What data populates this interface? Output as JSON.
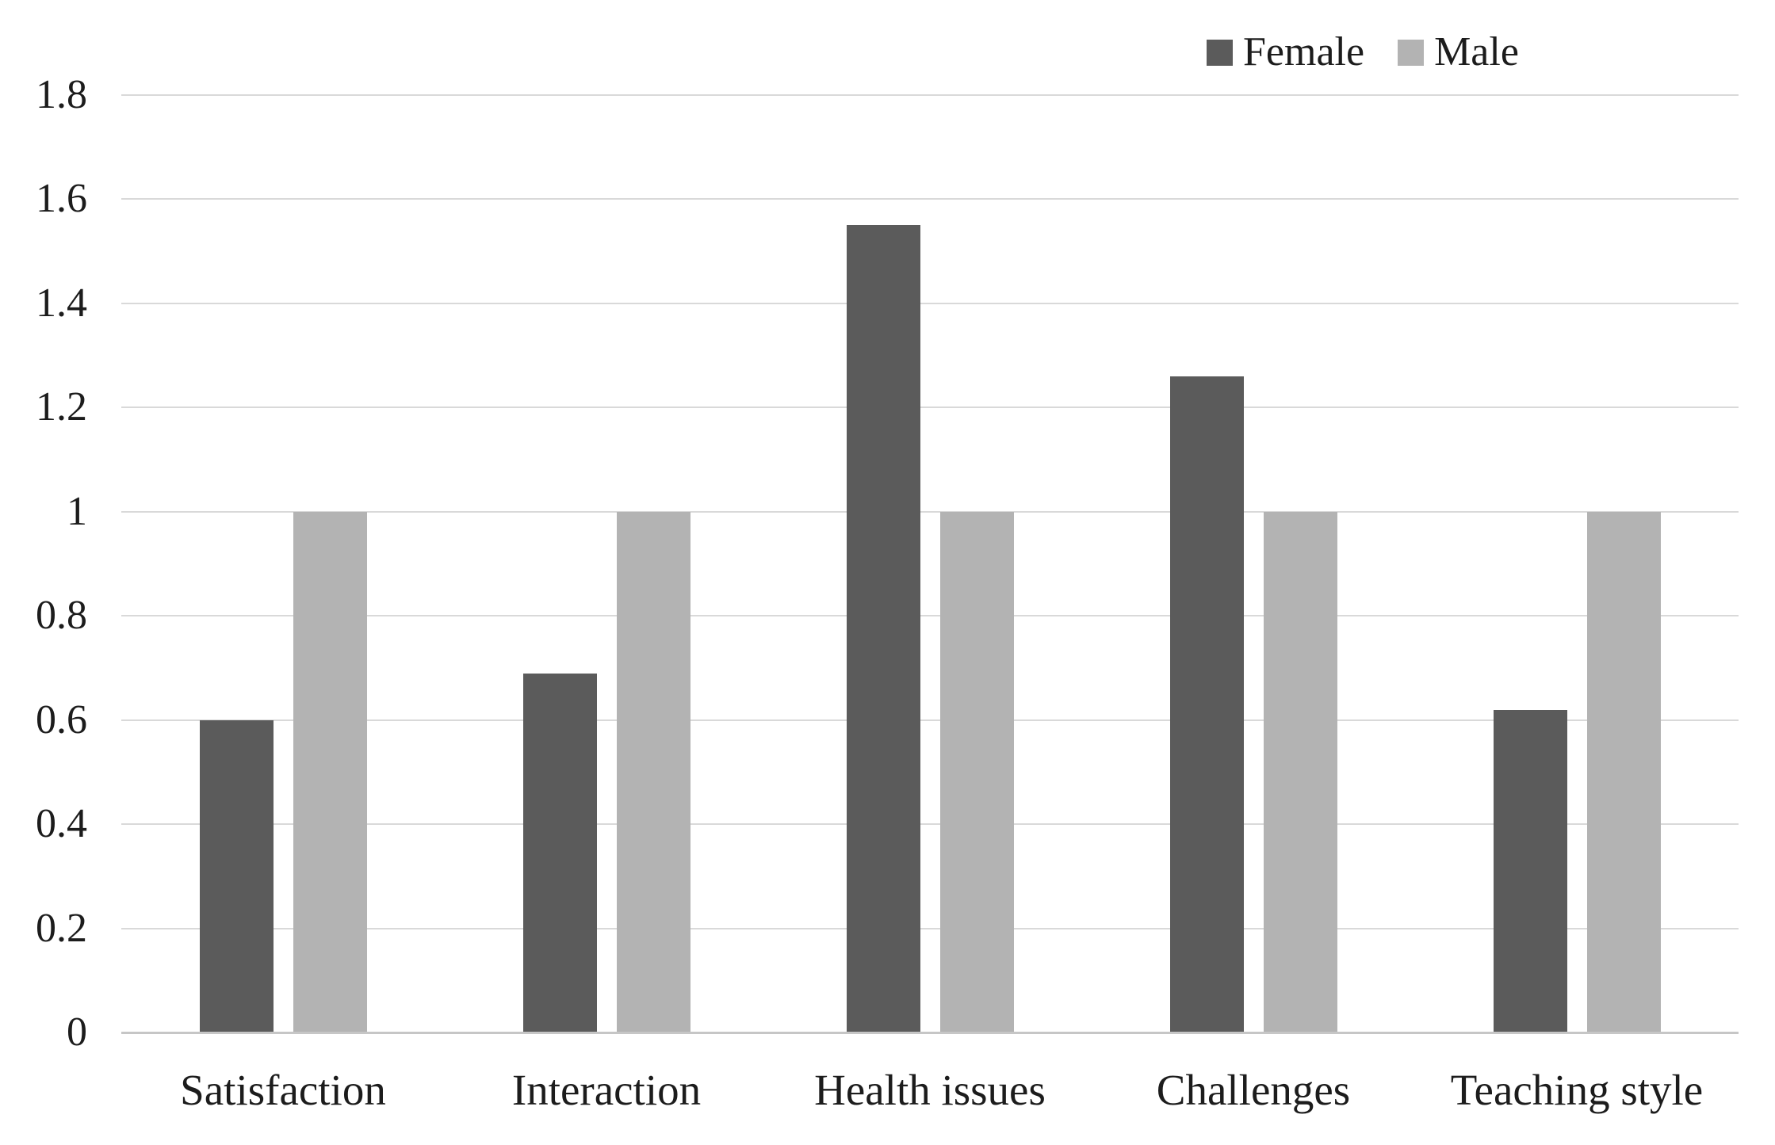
{
  "chart_data": {
    "type": "bar",
    "title": "",
    "xlabel": "",
    "ylabel": "",
    "categories": [
      "Satisfaction",
      "Interaction",
      "Health issues",
      "Challenges",
      "Teaching style"
    ],
    "series": [
      {
        "name": "Female",
        "color": "#5b5b5b",
        "values": [
          0.6,
          0.69,
          1.55,
          1.26,
          0.62
        ]
      },
      {
        "name": "Male",
        "color": "#b3b3b3",
        "values": [
          1.0,
          1.0,
          1.0,
          1.0,
          1.0
        ]
      }
    ],
    "ylim": [
      0,
      1.8
    ],
    "yticks": [
      {
        "value": 0,
        "label": "0"
      },
      {
        "value": 0.2,
        "label": "0.2"
      },
      {
        "value": 0.4,
        "label": "0.4"
      },
      {
        "value": 0.6,
        "label": "0.6"
      },
      {
        "value": 0.8,
        "label": "0.8"
      },
      {
        "value": 1,
        "label": "1"
      },
      {
        "value": 1.2,
        "label": "1.2"
      },
      {
        "value": 1.4,
        "label": "1.4"
      },
      {
        "value": 1.6,
        "label": "1.6"
      },
      {
        "value": 1.8,
        "label": "1.8"
      }
    ],
    "grid": "horizontal",
    "legend": {
      "position": "top-right",
      "entries": [
        "Female",
        "Male"
      ]
    },
    "colors": {
      "gridline": "#d9d9d9",
      "axis_line": "#c6c6c6",
      "text": "#1c1c1c",
      "background": "#ffffff"
    }
  }
}
